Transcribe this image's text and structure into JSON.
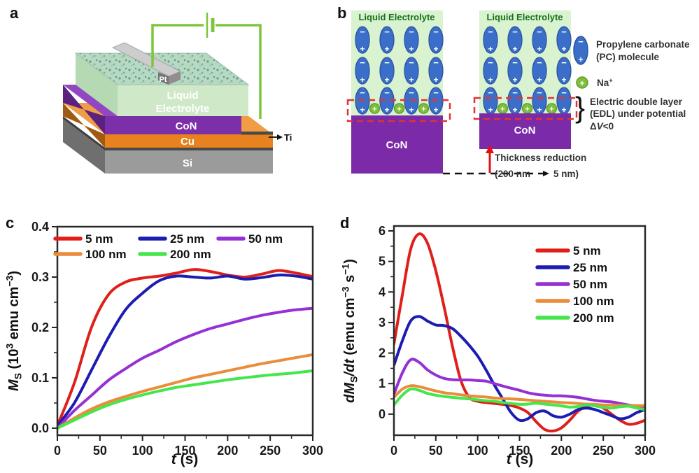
{
  "figure_labels": {
    "a": "a",
    "b": "b",
    "c": "c",
    "d": "d"
  },
  "panel_a": {
    "labels": {
      "pt": "Pt",
      "liquid": "Liquid",
      "electrolyte": "Electrolyte",
      "con": "CoN",
      "cu": "Cu",
      "si": "Si",
      "ti": "Ti"
    },
    "colors": {
      "electrolyte_front": "#cfe9c8",
      "con_front": "#7b2fa8",
      "cu_front": "#e8821f",
      "si_front": "#9b9b9b",
      "wire_green": "#7cc63e"
    }
  },
  "panel_b": {
    "electrolyte_title": "Liquid Electrolyte",
    "con_label": "CoN",
    "ion_minus": "−",
    "ion_plus": "+",
    "molecule_grid": {
      "columns": 4,
      "rows": 3,
      "na_ions_per_panel": 3
    },
    "legend": {
      "pc_line1": "Propylene carbonate",
      "pc_line2": "(PC) molecule",
      "na_rich": [
        [
          "n",
          "Na"
        ],
        [
          "sup",
          "+"
        ]
      ],
      "edl_line1": "Electric double layer",
      "edl_line2": "(EDL) under potential",
      "edl_line3_rich": [
        [
          "n",
          "Δ"
        ],
        [
          "i",
          "V"
        ],
        [
          "n",
          "<0"
        ]
      ],
      "brace": "}"
    },
    "thickness": {
      "line1": "Thickness reduction",
      "line2_open": "(200 nm",
      "line2_close": "5 nm)"
    },
    "colors": {
      "electrolyte_bg": "#d9f2cf",
      "pc_molecule": "#3a6ec8",
      "na_ion": "#7fbf3d",
      "con_block": "#7b2aa8",
      "edl_dashed": "#e23333",
      "arrow_red": "#e01111"
    }
  },
  "chart_data": [
    {
      "id": "c",
      "type": "line",
      "xlabel": "t (s)",
      "ylabel": "MS (10^3 emu cm^-3)",
      "xlabel_rich": [
        [
          "i",
          "t"
        ],
        [
          "n",
          " (s)"
        ]
      ],
      "ylabel_rich": [
        [
          "i",
          "M"
        ],
        [
          "sub",
          "S"
        ],
        [
          "n",
          " (10"
        ],
        [
          "sup",
          "3"
        ],
        [
          "n",
          " emu cm"
        ],
        [
          "sup",
          "−3"
        ],
        [
          "n",
          ")"
        ]
      ],
      "xlim": [
        0,
        300
      ],
      "ylim": [
        -0.014,
        0.4
      ],
      "x_ticks": {
        "major": [
          0,
          50,
          100,
          150,
          200,
          250,
          300
        ],
        "labels": [
          "0",
          "50",
          "100",
          "150",
          "200",
          "250",
          "300"
        ],
        "minor_step": 25
      },
      "y_ticks": {
        "major": [
          0,
          0.1,
          0.2,
          0.3,
          0.4
        ],
        "labels": [
          "0.0",
          "0.1",
          "0.2",
          "0.3",
          "0.4"
        ],
        "minor_step": 0.05
      },
      "x": [
        0,
        20,
        40,
        60,
        80,
        100,
        120,
        140,
        160,
        180,
        200,
        220,
        240,
        260,
        280,
        300
      ],
      "series": [
        {
          "name": "5 nm",
          "color": "#e01f1a",
          "values": [
            0.005,
            0.09,
            0.2,
            0.265,
            0.29,
            0.298,
            0.302,
            0.308,
            0.315,
            0.311,
            0.304,
            0.3,
            0.306,
            0.313,
            0.308,
            0.301
          ]
        },
        {
          "name": "25 nm",
          "color": "#1c1cb0",
          "values": [
            0.005,
            0.05,
            0.115,
            0.18,
            0.235,
            0.268,
            0.293,
            0.302,
            0.3,
            0.298,
            0.302,
            0.296,
            0.299,
            0.304,
            0.302,
            0.296
          ]
        },
        {
          "name": "50 nm",
          "color": "#9530d4",
          "values": [
            0.0,
            0.035,
            0.065,
            0.095,
            0.118,
            0.139,
            0.155,
            0.172,
            0.186,
            0.198,
            0.207,
            0.216,
            0.224,
            0.23,
            0.235,
            0.238
          ]
        },
        {
          "name": "100 nm",
          "color": "#ea8c3a",
          "values": [
            0.0,
            0.02,
            0.038,
            0.052,
            0.063,
            0.073,
            0.082,
            0.091,
            0.1,
            0.107,
            0.114,
            0.121,
            0.128,
            0.134,
            0.14,
            0.146
          ]
        },
        {
          "name": "200 nm",
          "color": "#45e64c",
          "values": [
            0.0,
            0.016,
            0.032,
            0.046,
            0.057,
            0.066,
            0.074,
            0.081,
            0.086,
            0.091,
            0.096,
            0.1,
            0.104,
            0.107,
            0.11,
            0.114
          ]
        }
      ]
    },
    {
      "id": "d",
      "type": "line",
      "xlabel": "t (s)",
      "ylabel": "dMS/dt (emu cm^-3 s^-1)",
      "xlabel_rich": [
        [
          "i",
          "t"
        ],
        [
          "n",
          " (s)"
        ]
      ],
      "ylabel_rich": [
        [
          "i",
          "dM"
        ],
        [
          "sub",
          "S"
        ],
        [
          "i",
          "/dt"
        ],
        [
          "n",
          " (emu cm"
        ],
        [
          "sup",
          "−3"
        ],
        [
          "n",
          " s"
        ],
        [
          "sup",
          "−1"
        ],
        [
          "n",
          ")"
        ]
      ],
      "xlim": [
        0,
        300
      ],
      "ylim": [
        -0.69,
        6.16
      ],
      "x_ticks": {
        "major": [
          0,
          50,
          100,
          150,
          200,
          250,
          300
        ],
        "labels": [
          "0",
          "50",
          "100",
          "150",
          "200",
          "250",
          "300"
        ],
        "minor_step": 25
      },
      "y_ticks": {
        "major": [
          0,
          1,
          2,
          3,
          4,
          5,
          6
        ],
        "labels": [
          "0",
          "1",
          "2",
          "3",
          "4",
          "5",
          "6"
        ],
        "minor_step": 0.5
      },
      "x": [
        0,
        10,
        20,
        30,
        40,
        50,
        60,
        70,
        80,
        90,
        100,
        110,
        120,
        130,
        140,
        150,
        160,
        170,
        180,
        190,
        200,
        210,
        220,
        230,
        240,
        250,
        260,
        270,
        280,
        290,
        300
      ],
      "series": [
        {
          "name": "5 nm",
          "color": "#e01f1a",
          "values": [
            2.3,
            3.9,
            5.4,
            5.9,
            5.6,
            4.7,
            3.5,
            2.2,
            1.1,
            0.55,
            0.42,
            0.38,
            0.35,
            0.32,
            0.28,
            0.2,
            0.05,
            -0.25,
            -0.5,
            -0.55,
            -0.45,
            -0.2,
            0.1,
            0.25,
            0.3,
            0.2,
            0.0,
            -0.2,
            -0.33,
            -0.3,
            -0.2
          ]
        },
        {
          "name": "25 nm",
          "color": "#1c1cb0",
          "values": [
            1.6,
            2.4,
            3.05,
            3.2,
            3.05,
            2.92,
            2.9,
            2.8,
            2.55,
            2.25,
            1.9,
            1.45,
            0.95,
            0.5,
            0.05,
            -0.2,
            -0.15,
            0.05,
            0.1,
            -0.05,
            -0.1,
            0.0,
            0.15,
            0.2,
            0.15,
            0.05,
            -0.05,
            -0.15,
            -0.1,
            0.05,
            0.15
          ]
        },
        {
          "name": "50 nm",
          "color": "#9530d4",
          "values": [
            0.65,
            1.35,
            1.78,
            1.7,
            1.45,
            1.28,
            1.17,
            1.13,
            1.12,
            1.12,
            1.1,
            1.08,
            1.0,
            0.92,
            0.85,
            0.78,
            0.7,
            0.65,
            0.62,
            0.6,
            0.6,
            0.58,
            0.55,
            0.5,
            0.45,
            0.42,
            0.4,
            0.35,
            0.3,
            0.27,
            0.25
          ]
        },
        {
          "name": "100 nm",
          "color": "#ea8c3a",
          "values": [
            0.55,
            0.82,
            0.93,
            0.9,
            0.83,
            0.76,
            0.7,
            0.67,
            0.63,
            0.6,
            0.58,
            0.56,
            0.53,
            0.51,
            0.5,
            0.48,
            0.46,
            0.44,
            0.42,
            0.4,
            0.38,
            0.37,
            0.35,
            0.33,
            0.32,
            0.3,
            0.3,
            0.29,
            0.28,
            0.28,
            0.28
          ]
        },
        {
          "name": "200 nm",
          "color": "#45e64c",
          "values": [
            0.3,
            0.62,
            0.82,
            0.78,
            0.68,
            0.62,
            0.58,
            0.55,
            0.52,
            0.5,
            0.47,
            0.44,
            0.42,
            0.38,
            0.35,
            0.32,
            0.33,
            0.36,
            0.33,
            0.3,
            0.27,
            0.23,
            0.25,
            0.3,
            0.27,
            0.22,
            0.2,
            0.24,
            0.26,
            0.2,
            0.15
          ]
        }
      ]
    }
  ]
}
